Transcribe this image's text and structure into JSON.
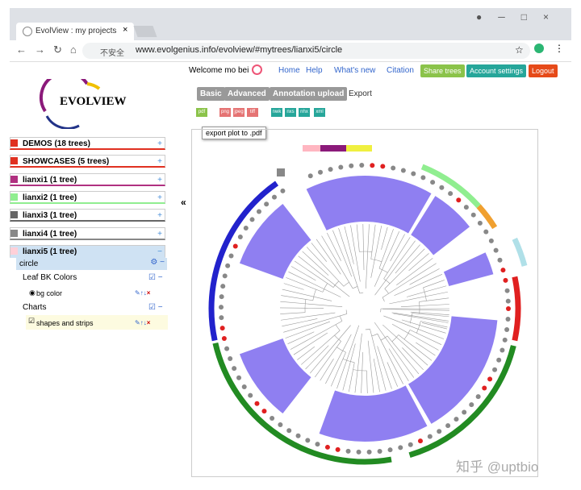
{
  "browser": {
    "tab_title": "EvolView : my projects",
    "security": "不安全",
    "url": "www.evolgenius.info/evolview/#mytrees/lianxi5/circle"
  },
  "header": {
    "welcome": "Welcome mo bei",
    "nav": [
      "Home",
      "Help",
      "What's new",
      "Citation"
    ],
    "buttons": [
      "Share trees",
      "Account settings",
      "Logout"
    ]
  },
  "sidebar": {
    "logo": "EVOLVIEW",
    "projects": [
      "DEMOS (18 trees)",
      "SHOWCASES (5 trees)",
      "lianxi1 (1 tree)",
      "lianxi2 (1 tree)",
      "lianxi3 (1 tree)",
      "lianxi4 (1 tree)",
      "lianxi5 (1 tree)"
    ],
    "tree": "circle",
    "sections": [
      {
        "title": "Leaf BK Colors",
        "items": [
          "bg color"
        ]
      },
      {
        "title": "Charts",
        "items": [
          "shapes and strips"
        ]
      }
    ]
  },
  "tabs": [
    "Basic",
    "Advanced",
    "Annotation upload",
    "Export"
  ],
  "export_formats": [
    "pdf",
    "png",
    "jpeg",
    "tiff",
    "nwk",
    "nxs",
    "nhx",
    "xml"
  ],
  "tooltip": "export plot to .pdf",
  "watermark": "知乎 @uptbio"
}
